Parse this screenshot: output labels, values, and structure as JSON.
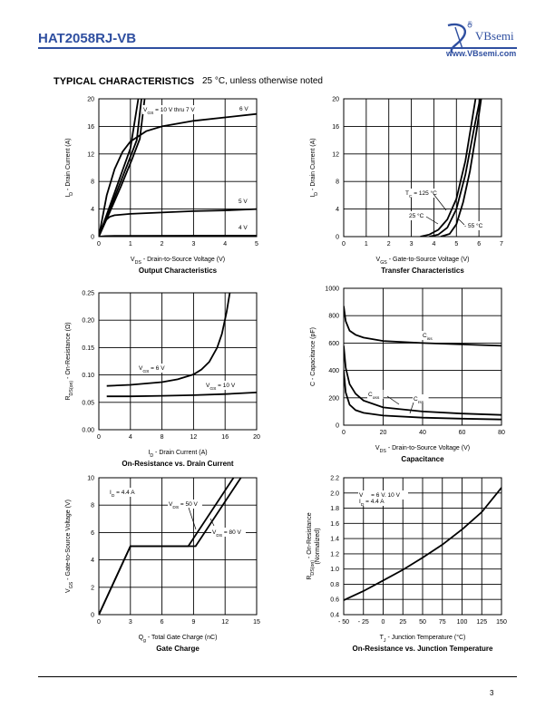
{
  "header": {
    "part_number": "HAT2058RJ-VB",
    "brand": "VBsemi",
    "brand_registered": "®",
    "url": "www.VBsemi.com"
  },
  "section": {
    "title": "TYPICAL CHARACTERISTICS",
    "note": "25 °C, unless otherwise noted"
  },
  "page_number": "3",
  "colors": {
    "brand": "#2f4fa0",
    "line": "#000000"
  },
  "chart_data": [
    {
      "id": "output",
      "type": "line",
      "title": "Output Characteristics",
      "xlabel": "V_DS - Drain-to-Source Voltage (V)",
      "ylabel": "I_D - Drain Current (A)",
      "xlim": [
        0,
        5
      ],
      "ylim": [
        0,
        20
      ],
      "xticks": [
        0,
        1,
        2,
        3,
        4,
        5
      ],
      "yticks": [
        0,
        4,
        8,
        12,
        16,
        20
      ],
      "annotations": [
        "VGS = 10 V thru 7 V",
        "6 V",
        "5 V",
        "4 V"
      ],
      "series": [
        {
          "name": "VGS = 10 V thru 7 V (a)",
          "x": [
            0,
            0.25,
            0.5,
            0.75,
            1.0,
            1.25
          ],
          "y": [
            0,
            3.2,
            6.4,
            9.6,
            12.8,
            20
          ]
        },
        {
          "name": "VGS = 10 V thru 7 V (b)",
          "x": [
            0,
            0.3,
            0.6,
            0.9,
            1.2,
            1.35
          ],
          "y": [
            0,
            3.4,
            6.9,
            10.4,
            14.0,
            20
          ]
        },
        {
          "name": "VGS = 10 V thru 7 V (c)",
          "x": [
            0,
            0.35,
            0.7,
            1.05,
            1.3,
            1.45
          ],
          "y": [
            0,
            3.6,
            7.3,
            11.2,
            14.2,
            20
          ]
        },
        {
          "name": "6 V",
          "x": [
            0,
            0.25,
            0.5,
            0.75,
            1.0,
            1.5,
            2.0,
            3.0,
            4.0,
            5.0
          ],
          "y": [
            0,
            6.0,
            9.8,
            12.3,
            13.8,
            15.3,
            16.0,
            16.8,
            17.3,
            17.8
          ]
        },
        {
          "name": "5 V",
          "x": [
            0,
            0.1,
            0.2,
            0.35,
            0.5,
            1.0,
            2.0,
            3.0,
            4.0,
            5.0
          ],
          "y": [
            0,
            1.4,
            2.3,
            2.9,
            3.1,
            3.3,
            3.5,
            3.7,
            3.8,
            4.0
          ]
        },
        {
          "name": "4 V",
          "x": [
            0,
            0.2,
            0.5,
            1.0,
            5.0
          ],
          "y": [
            0,
            0.08,
            0.1,
            0.12,
            0.15
          ]
        }
      ]
    },
    {
      "id": "transfer",
      "type": "line",
      "title": "Transfer Characteristics",
      "xlabel": "V_GS - Gate-to-Source Voltage (V)",
      "ylabel": "I_D - Drain Current (A)",
      "xlim": [
        0,
        7
      ],
      "ylim": [
        0,
        20
      ],
      "xticks": [
        0,
        1,
        2,
        3,
        4,
        5,
        6,
        7
      ],
      "yticks": [
        0,
        4,
        8,
        12,
        16,
        20
      ],
      "annotations": [
        "TC = 125 °C",
        "25 °C",
        "- 55 °C"
      ],
      "series": [
        {
          "name": "TC = 125 °C",
          "x": [
            3.4,
            3.8,
            4.2,
            4.6,
            5.0,
            5.4,
            5.85
          ],
          "y": [
            0,
            0.3,
            1.0,
            2.5,
            5.5,
            11.0,
            20
          ]
        },
        {
          "name": "25 °C",
          "x": [
            3.8,
            4.2,
            4.6,
            5.0,
            5.4,
            5.8,
            6.05
          ],
          "y": [
            0,
            0.3,
            1.3,
            4.0,
            9.0,
            16.0,
            20
          ]
        },
        {
          "name": "- 55 °C",
          "x": [
            4.3,
            4.7,
            5.0,
            5.3,
            5.6,
            5.9,
            6.1
          ],
          "y": [
            0,
            0.4,
            1.8,
            5.0,
            9.5,
            15.5,
            20
          ]
        }
      ]
    },
    {
      "id": "ron_id",
      "type": "line",
      "title": "On-Resistance vs. Drain Current",
      "xlabel": "I_D - Drain Current (A)",
      "ylabel": "R_DS(on) - On-Resistance (Ω)",
      "xlim": [
        0,
        20
      ],
      "ylim": [
        0,
        0.25
      ],
      "xticks": [
        0,
        4,
        8,
        12,
        16,
        20
      ],
      "yticks": [
        0.0,
        0.05,
        0.1,
        0.15,
        0.2,
        0.25
      ],
      "tick_labels_y": [
        "0.00",
        "0.05",
        "0.10",
        "0.15",
        "0.20",
        "0.25"
      ],
      "annotations": [
        "VGS = 6 V",
        "VGS = 10 V"
      ],
      "series": [
        {
          "name": "VGS = 6 V",
          "x": [
            1,
            4,
            8,
            10,
            12,
            13,
            14,
            15,
            15.6,
            16.2,
            16.6
          ],
          "y": [
            0.08,
            0.082,
            0.087,
            0.092,
            0.101,
            0.11,
            0.124,
            0.15,
            0.175,
            0.215,
            0.25
          ]
        },
        {
          "name": "VGS = 10 V",
          "x": [
            1,
            4,
            8,
            12,
            16,
            20
          ],
          "y": [
            0.061,
            0.061,
            0.062,
            0.063,
            0.065,
            0.068
          ]
        }
      ]
    },
    {
      "id": "capacitance",
      "type": "line",
      "title": "Capacitance",
      "xlabel": "V_DS - Drain-to-Source Voltage (V)",
      "ylabel": "C - Capacitance (pF)",
      "xlim": [
        0,
        80
      ],
      "ylim": [
        0,
        1000
      ],
      "xticks": [
        0,
        20,
        40,
        60,
        80
      ],
      "yticks": [
        0,
        200,
        400,
        600,
        800,
        1000
      ],
      "annotations": [
        "Ciss",
        "Coss",
        "Crss"
      ],
      "series": [
        {
          "name": "Ciss",
          "x": [
            0,
            1,
            3,
            6,
            10,
            20,
            40,
            60,
            80
          ],
          "y": [
            870,
            760,
            690,
            660,
            640,
            615,
            600,
            590,
            580
          ]
        },
        {
          "name": "Coss",
          "x": [
            0,
            1,
            3,
            6,
            10,
            20,
            40,
            60,
            80
          ],
          "y": [
            580,
            420,
            300,
            230,
            180,
            130,
            100,
            85,
            75
          ]
        },
        {
          "name": "Crss",
          "x": [
            0,
            1,
            3,
            6,
            10,
            20,
            40,
            60,
            80
          ],
          "y": [
            400,
            240,
            150,
            110,
            90,
            70,
            55,
            48,
            42
          ]
        }
      ]
    },
    {
      "id": "gate_charge",
      "type": "line",
      "title": "Gate Charge",
      "xlabel": "Q_g - Total Gate Charge (nC)",
      "ylabel": "V_GS - Gate-to-Source Voltage (V)",
      "xlim": [
        0,
        15
      ],
      "ylim": [
        0,
        10
      ],
      "xticks": [
        0,
        3,
        6,
        9,
        12,
        15
      ],
      "yticks": [
        0,
        2,
        4,
        6,
        8,
        10
      ],
      "annotations": [
        "ID = 4.4 A",
        "VDS = 50 V",
        "VDS = 80 V"
      ],
      "series": [
        {
          "name": "VDS = 50 V",
          "x": [
            0,
            3,
            8.5,
            12.8
          ],
          "y": [
            0,
            5,
            5,
            10
          ]
        },
        {
          "name": "VDS = 80 V",
          "x": [
            0,
            3,
            8.5,
            9.2,
            13.5
          ],
          "y": [
            0,
            5,
            5,
            5,
            10
          ]
        }
      ]
    },
    {
      "id": "ron_tj",
      "type": "line",
      "title": "On-Resistance vs. Junction Temperature",
      "xlabel": "T_J - Junction Temperature (°C)",
      "ylabel": "R_DS(on) - On-Resistance (Normalized)",
      "xlim": [
        -50,
        150
      ],
      "ylim": [
        0.4,
        2.2
      ],
      "xticks": [
        -50,
        -25,
        0,
        25,
        50,
        75,
        100,
        125,
        150
      ],
      "tick_labels_x": [
        "- 50",
        "- 25",
        "0",
        "25",
        "50",
        "75",
        "100",
        "125",
        "150"
      ],
      "yticks": [
        0.4,
        0.6,
        0.8,
        1.0,
        1.2,
        1.4,
        1.6,
        1.8,
        2.0,
        2.2
      ],
      "annotations": [
        "VGS = 6 V, 10 V",
        "ID = 4.4 A"
      ],
      "series": [
        {
          "name": "VGS = 6 V, 10 V",
          "x": [
            -50,
            -25,
            0,
            25,
            50,
            75,
            100,
            125,
            150
          ],
          "y": [
            0.59,
            0.71,
            0.85,
            0.99,
            1.15,
            1.32,
            1.52,
            1.75,
            2.07
          ]
        }
      ]
    }
  ]
}
